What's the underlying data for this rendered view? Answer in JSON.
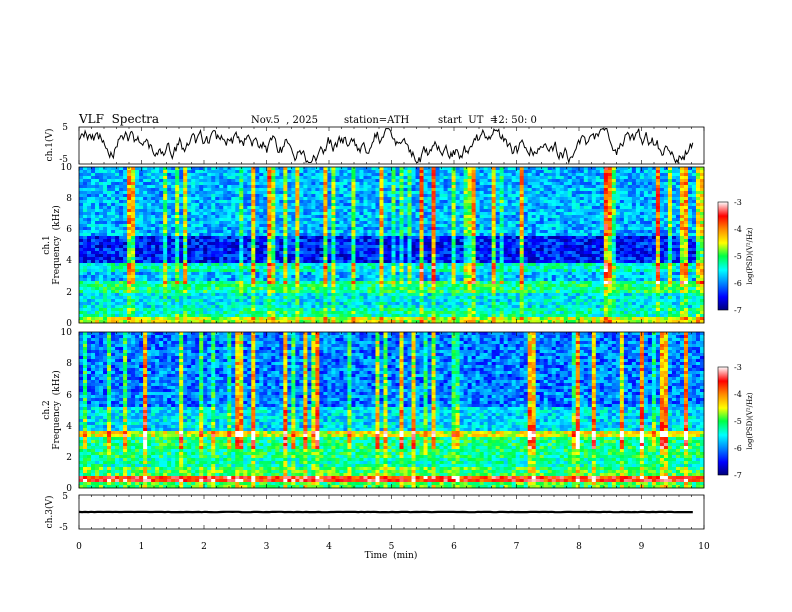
{
  "chart_data": {
    "type": "heatmap",
    "title": "VLF  Spectra",
    "date": "Nov.5  , 2025",
    "station": "station=ATH",
    "start_label": "start  UT  =",
    "start_time": "12: 50: 0",
    "xlabel": "Time  (min)",
    "xlim": [
      0,
      10
    ],
    "x_ticks": [
      "0",
      "1",
      "2",
      "3",
      "4",
      "5",
      "6",
      "7",
      "8",
      "9",
      "10"
    ],
    "panels": [
      {
        "id": "ch1-waveform",
        "kind": "line",
        "ylabel": "ch.1(V)",
        "ylim": [
          -5,
          5
        ],
        "y_ticks": [
          "5",
          "-5"
        ]
      },
      {
        "id": "ch1-spectrogram",
        "kind": "spectrogram",
        "ylabel_top": "ch.1",
        "ylabel": "Frequency  (kHz)",
        "ylim": [
          0,
          10
        ],
        "y_ticks": [
          "10",
          "8",
          "6",
          "4",
          "2",
          "0"
        ]
      },
      {
        "id": "ch2-spectrogram",
        "kind": "spectrogram",
        "ylabel_top": "ch.2",
        "ylabel": "Frequency  (kHz)",
        "ylim": [
          0,
          10
        ],
        "y_ticks": [
          "10",
          "8",
          "6",
          "4",
          "2",
          "0"
        ]
      },
      {
        "id": "ch3-waveform",
        "kind": "line",
        "ylabel": "ch.3(V)",
        "ylim": [
          -5,
          5
        ],
        "y_ticks": [
          "5",
          "-5"
        ],
        "baseline_value": 0
      }
    ],
    "colorbar": {
      "label": "log(PSD)(V²/Hz)",
      "range": [
        -7,
        -3
      ],
      "ticks": [
        "-3",
        "-4",
        "-5",
        "-6",
        "-7"
      ],
      "colors": [
        "#00007a",
        "#0000ff",
        "#0088ff",
        "#00ffff",
        "#00ff44",
        "#ffff00",
        "#ff8800",
        "#ff0000",
        "#ffffff"
      ]
    }
  }
}
